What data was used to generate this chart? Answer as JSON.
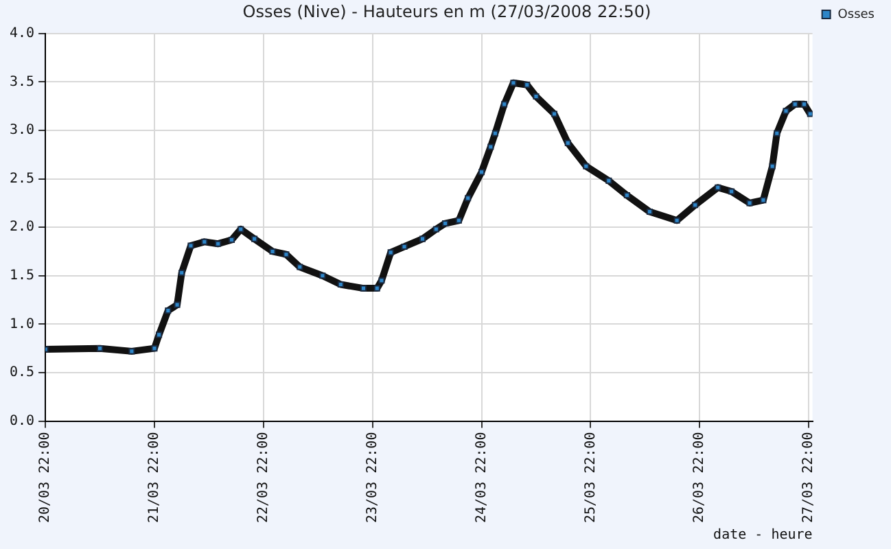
{
  "chart_data": {
    "type": "line",
    "title": "Osses (Nive) - Hauteurs en m (27/03/2008 22:50)",
    "xlabel": "date - heure",
    "x": [
      "2008-03-20T22:00",
      "2008-03-21T10:00",
      "2008-03-21T17:00",
      "2008-03-21T22:00",
      "2008-03-21T23:00",
      "2008-03-22T01:00",
      "2008-03-22T03:00",
      "2008-03-22T04:00",
      "2008-03-22T06:00",
      "2008-03-22T09:00",
      "2008-03-22T12:00",
      "2008-03-22T15:00",
      "2008-03-22T17:00",
      "2008-03-22T20:00",
      "2008-03-23T00:00",
      "2008-03-23T03:00",
      "2008-03-23T06:00",
      "2008-03-23T11:00",
      "2008-03-23T15:00",
      "2008-03-23T20:00",
      "2008-03-23T23:00",
      "2008-03-24T00:00",
      "2008-03-24T02:00",
      "2008-03-24T05:00",
      "2008-03-24T09:00",
      "2008-03-24T12:00",
      "2008-03-24T14:00",
      "2008-03-24T17:00",
      "2008-03-24T19:00",
      "2008-03-24T22:00",
      "2008-03-25T00:00",
      "2008-03-25T01:00",
      "2008-03-25T03:00",
      "2008-03-25T05:00",
      "2008-03-25T08:00",
      "2008-03-25T10:00",
      "2008-03-25T14:00",
      "2008-03-25T17:00",
      "2008-03-25T21:00",
      "2008-03-26T02:00",
      "2008-03-26T06:00",
      "2008-03-26T11:00",
      "2008-03-26T17:00",
      "2008-03-26T21:00",
      "2008-03-27T02:00",
      "2008-03-27T05:00",
      "2008-03-27T09:00",
      "2008-03-27T12:00",
      "2008-03-27T14:00",
      "2008-03-27T15:00",
      "2008-03-27T17:00",
      "2008-03-27T19:00",
      "2008-03-27T21:00",
      "2008-03-27T22:20"
    ],
    "series": [
      {
        "name": "Osses",
        "color": "#2e86c8",
        "values": [
          0.74,
          0.75,
          0.72,
          0.75,
          0.89,
          1.14,
          1.2,
          1.53,
          1.81,
          1.85,
          1.83,
          1.87,
          1.98,
          1.88,
          1.75,
          1.72,
          1.59,
          1.5,
          1.41,
          1.37,
          1.37,
          1.45,
          1.74,
          1.8,
          1.88,
          1.98,
          2.04,
          2.07,
          2.3,
          2.57,
          2.83,
          2.97,
          3.27,
          3.49,
          3.47,
          3.35,
          3.17,
          2.87,
          2.63,
          2.48,
          2.33,
          2.16,
          2.07,
          2.23,
          2.41,
          2.37,
          2.25,
          2.28,
          2.63,
          2.97,
          3.2,
          3.27,
          3.27,
          3.17
        ]
      }
    ],
    "xlim": [
      "2008-03-20T22:00",
      "2008-03-27T22:50"
    ],
    "xticks": [
      {
        "value": "2008-03-20T22:00",
        "label": "20/03 22:00"
      },
      {
        "value": "2008-03-21T22:00",
        "label": "21/03 22:00"
      },
      {
        "value": "2008-03-22T22:00",
        "label": "22/03 22:00"
      },
      {
        "value": "2008-03-23T22:00",
        "label": "23/03 22:00"
      },
      {
        "value": "2008-03-24T22:00",
        "label": "24/03 22:00"
      },
      {
        "value": "2008-03-25T22:00",
        "label": "25/03 22:00"
      },
      {
        "value": "2008-03-26T22:00",
        "label": "26/03 22:00"
      },
      {
        "value": "2008-03-27T22:00",
        "label": "27/03 22:00"
      }
    ],
    "ylim": [
      0,
      4
    ],
    "yticks": [
      {
        "value": 0,
        "label": "0.0"
      },
      {
        "value": 0.5,
        "label": "0.5"
      },
      {
        "value": 1,
        "label": "1.0"
      },
      {
        "value": 1.5,
        "label": "1.5"
      },
      {
        "value": 2,
        "label": "2.0"
      },
      {
        "value": 2.5,
        "label": "2.5"
      },
      {
        "value": 3,
        "label": "3.0"
      },
      {
        "value": 3.5,
        "label": "3.5"
      },
      {
        "value": 4,
        "label": "4.0"
      }
    ],
    "grid": true,
    "legend": "top right",
    "marker": "square",
    "line_style": "solid"
  }
}
